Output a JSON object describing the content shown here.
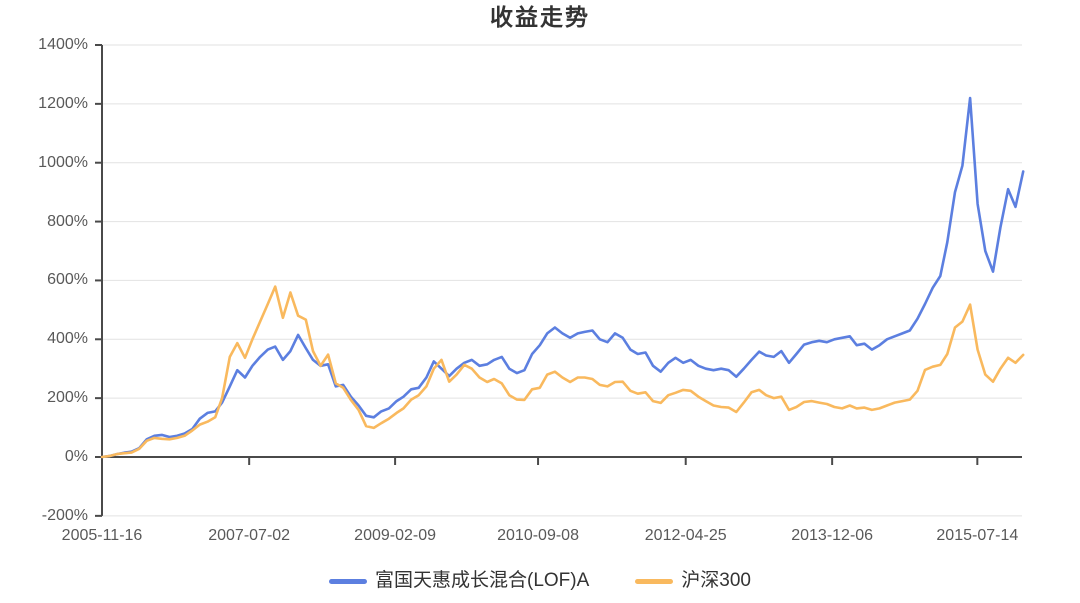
{
  "page": {
    "background": "#ffffff"
  },
  "chart_data": {
    "type": "line",
    "title": "收益走势",
    "xlabel": "",
    "ylabel": "",
    "y_tick_suffix": "%",
    "ylim": [
      -200,
      1400
    ],
    "y_ticks": [
      1400,
      1200,
      1000,
      800,
      600,
      400,
      200,
      0,
      -200
    ],
    "x_domain": [
      "2005-11-16",
      "2016-01-10"
    ],
    "x_ticks": [
      "2005-11-16",
      "2007-07-02",
      "2009-02-09",
      "2010-09-08",
      "2012-04-25",
      "2013-12-06",
      "2015-07-14"
    ],
    "grid": true,
    "legend_position": "bottom",
    "colors": {
      "axis": "#4a4a4a",
      "gridline": "#e2e2e2",
      "text": "#333333",
      "tick_text": "#595959"
    },
    "series": [
      {
        "name": "富国天惠成长混合(LOF)A",
        "color": "#5C7FE0",
        "points": [
          [
            "2005-11-16",
            0
          ],
          [
            "2005-12",
            3
          ],
          [
            "2006-01",
            10
          ],
          [
            "2006-02",
            15
          ],
          [
            "2006-03",
            18
          ],
          [
            "2006-04",
            30
          ],
          [
            "2006-05",
            60
          ],
          [
            "2006-06",
            72
          ],
          [
            "2006-07",
            75
          ],
          [
            "2006-08",
            68
          ],
          [
            "2006-09",
            72
          ],
          [
            "2006-10",
            80
          ],
          [
            "2006-11",
            95
          ],
          [
            "2006-12",
            130
          ],
          [
            "2007-01",
            150
          ],
          [
            "2007-02",
            155
          ],
          [
            "2007-03",
            185
          ],
          [
            "2007-04",
            240
          ],
          [
            "2007-05",
            295
          ],
          [
            "2007-06",
            270
          ],
          [
            "2007-07",
            310
          ],
          [
            "2007-08",
            340
          ],
          [
            "2007-09",
            365
          ],
          [
            "2007-10",
            375
          ],
          [
            "2007-11",
            330
          ],
          [
            "2007-12",
            360
          ],
          [
            "2008-01",
            415
          ],
          [
            "2008-02",
            370
          ],
          [
            "2008-03",
            330
          ],
          [
            "2008-04",
            310
          ],
          [
            "2008-05",
            315
          ],
          [
            "2008-06",
            240
          ],
          [
            "2008-07",
            245
          ],
          [
            "2008-08",
            205
          ],
          [
            "2008-09",
            175
          ],
          [
            "2008-10",
            140
          ],
          [
            "2008-11",
            135
          ],
          [
            "2008-12",
            155
          ],
          [
            "2009-01",
            165
          ],
          [
            "2009-02",
            190
          ],
          [
            "2009-03",
            205
          ],
          [
            "2009-04",
            230
          ],
          [
            "2009-05",
            235
          ],
          [
            "2009-06",
            270
          ],
          [
            "2009-07",
            325
          ],
          [
            "2009-08",
            300
          ],
          [
            "2009-09",
            275
          ],
          [
            "2009-10",
            300
          ],
          [
            "2009-11",
            320
          ],
          [
            "2009-12",
            330
          ],
          [
            "2010-01",
            310
          ],
          [
            "2010-02",
            315
          ],
          [
            "2010-03",
            330
          ],
          [
            "2010-04",
            340
          ],
          [
            "2010-05",
            300
          ],
          [
            "2010-06",
            285
          ],
          [
            "2010-07",
            295
          ],
          [
            "2010-08",
            350
          ],
          [
            "2010-09",
            380
          ],
          [
            "2010-10",
            420
          ],
          [
            "2010-11",
            440
          ],
          [
            "2010-12",
            420
          ],
          [
            "2011-01",
            405
          ],
          [
            "2011-02",
            420
          ],
          [
            "2011-03",
            425
          ],
          [
            "2011-04",
            430
          ],
          [
            "2011-05",
            400
          ],
          [
            "2011-06",
            390
          ],
          [
            "2011-07",
            420
          ],
          [
            "2011-08",
            405
          ],
          [
            "2011-09",
            365
          ],
          [
            "2011-10",
            350
          ],
          [
            "2011-11",
            355
          ],
          [
            "2011-12",
            310
          ],
          [
            "2012-01",
            290
          ],
          [
            "2012-02",
            320
          ],
          [
            "2012-03",
            337
          ],
          [
            "2012-04",
            320
          ],
          [
            "2012-05",
            330
          ],
          [
            "2012-06",
            310
          ],
          [
            "2012-07",
            300
          ],
          [
            "2012-08",
            295
          ],
          [
            "2012-09",
            300
          ],
          [
            "2012-10",
            295
          ],
          [
            "2012-11",
            273
          ],
          [
            "2012-12",
            300
          ],
          [
            "2013-01",
            330
          ],
          [
            "2013-02",
            358
          ],
          [
            "2013-03",
            345
          ],
          [
            "2013-04",
            340
          ],
          [
            "2013-05",
            360
          ],
          [
            "2013-06",
            320
          ],
          [
            "2013-07",
            350
          ],
          [
            "2013-08",
            382
          ],
          [
            "2013-09",
            390
          ],
          [
            "2013-10",
            395
          ],
          [
            "2013-11",
            390
          ],
          [
            "2013-12",
            400
          ],
          [
            "2014-01",
            405
          ],
          [
            "2014-02",
            410
          ],
          [
            "2014-03",
            380
          ],
          [
            "2014-04",
            385
          ],
          [
            "2014-05",
            365
          ],
          [
            "2014-06",
            380
          ],
          [
            "2014-07",
            400
          ],
          [
            "2014-08",
            410
          ],
          [
            "2014-09",
            420
          ],
          [
            "2014-10",
            430
          ],
          [
            "2014-11",
            470
          ],
          [
            "2014-12",
            520
          ],
          [
            "2015-01",
            575
          ],
          [
            "2015-02",
            615
          ],
          [
            "2015-03",
            730
          ],
          [
            "2015-04",
            900
          ],
          [
            "2015-05",
            990
          ],
          [
            "2015-06",
            1220
          ],
          [
            "2015-07",
            860
          ],
          [
            "2015-08",
            700
          ],
          [
            "2015-09",
            630
          ],
          [
            "2015-10",
            780
          ],
          [
            "2015-11",
            910
          ],
          [
            "2015-12",
            850
          ],
          [
            "2016-01",
            970
          ]
        ]
      },
      {
        "name": "沪深300",
        "color": "#F9B95E",
        "points": [
          [
            "2005-11-16",
            0
          ],
          [
            "2005-12",
            3
          ],
          [
            "2006-01",
            10
          ],
          [
            "2006-02",
            13
          ],
          [
            "2006-03",
            15
          ],
          [
            "2006-04",
            28
          ],
          [
            "2006-05",
            55
          ],
          [
            "2006-06",
            65
          ],
          [
            "2006-07",
            62
          ],
          [
            "2006-08",
            60
          ],
          [
            "2006-09",
            65
          ],
          [
            "2006-10",
            72
          ],
          [
            "2006-11",
            90
          ],
          [
            "2006-12",
            110
          ],
          [
            "2007-01",
            120
          ],
          [
            "2007-02",
            135
          ],
          [
            "2007-03",
            200
          ],
          [
            "2007-04",
            340
          ],
          [
            "2007-05",
            387
          ],
          [
            "2007-06",
            337
          ],
          [
            "2007-07",
            400
          ],
          [
            "2007-08",
            460
          ],
          [
            "2007-09",
            520
          ],
          [
            "2007-10",
            579
          ],
          [
            "2007-11",
            473
          ],
          [
            "2007-12",
            559
          ],
          [
            "2008-01",
            480
          ],
          [
            "2008-02",
            467
          ],
          [
            "2008-03",
            360
          ],
          [
            "2008-04",
            310
          ],
          [
            "2008-05",
            348
          ],
          [
            "2008-06",
            250
          ],
          [
            "2008-07",
            235
          ],
          [
            "2008-08",
            194
          ],
          [
            "2008-09",
            160
          ],
          [
            "2008-10",
            105
          ],
          [
            "2008-11",
            99
          ],
          [
            "2008-12",
            115
          ],
          [
            "2009-01",
            130
          ],
          [
            "2009-02",
            150
          ],
          [
            "2009-03",
            165
          ],
          [
            "2009-04",
            195
          ],
          [
            "2009-05",
            210
          ],
          [
            "2009-06",
            240
          ],
          [
            "2009-07",
            300
          ],
          [
            "2009-08",
            330
          ],
          [
            "2009-09",
            256
          ],
          [
            "2009-10",
            280
          ],
          [
            "2009-11",
            313
          ],
          [
            "2009-12",
            300
          ],
          [
            "2010-01",
            270
          ],
          [
            "2010-02",
            255
          ],
          [
            "2010-03",
            265
          ],
          [
            "2010-04",
            250
          ],
          [
            "2010-05",
            210
          ],
          [
            "2010-06",
            195
          ],
          [
            "2010-07",
            194
          ],
          [
            "2010-08",
            230
          ],
          [
            "2010-09",
            235
          ],
          [
            "2010-10",
            280
          ],
          [
            "2010-11",
            290
          ],
          [
            "2010-12",
            270
          ],
          [
            "2011-01",
            255
          ],
          [
            "2011-02",
            270
          ],
          [
            "2011-03",
            270
          ],
          [
            "2011-04",
            265
          ],
          [
            "2011-05",
            245
          ],
          [
            "2011-06",
            240
          ],
          [
            "2011-07",
            255
          ],
          [
            "2011-08",
            256
          ],
          [
            "2011-09",
            225
          ],
          [
            "2011-10",
            215
          ],
          [
            "2011-11",
            220
          ],
          [
            "2011-12",
            190
          ],
          [
            "2012-01",
            184
          ],
          [
            "2012-02",
            210
          ],
          [
            "2012-03",
            218
          ],
          [
            "2012-04",
            228
          ],
          [
            "2012-05",
            225
          ],
          [
            "2012-06",
            205
          ],
          [
            "2012-07",
            190
          ],
          [
            "2012-08",
            175
          ],
          [
            "2012-09",
            170
          ],
          [
            "2012-10",
            168
          ],
          [
            "2012-11",
            153
          ],
          [
            "2012-12",
            185
          ],
          [
            "2013-01",
            220
          ],
          [
            "2013-02",
            228
          ],
          [
            "2013-03",
            210
          ],
          [
            "2013-04",
            200
          ],
          [
            "2013-05",
            205
          ],
          [
            "2013-06",
            160
          ],
          [
            "2013-07",
            170
          ],
          [
            "2013-08",
            187
          ],
          [
            "2013-09",
            190
          ],
          [
            "2013-10",
            185
          ],
          [
            "2013-11",
            180
          ],
          [
            "2013-12",
            170
          ],
          [
            "2014-01",
            165
          ],
          [
            "2014-02",
            175
          ],
          [
            "2014-03",
            165
          ],
          [
            "2014-04",
            168
          ],
          [
            "2014-05",
            160
          ],
          [
            "2014-06",
            165
          ],
          [
            "2014-07",
            175
          ],
          [
            "2014-08",
            185
          ],
          [
            "2014-09",
            190
          ],
          [
            "2014-10",
            195
          ],
          [
            "2014-11",
            225
          ],
          [
            "2014-12",
            296
          ],
          [
            "2015-01",
            307
          ],
          [
            "2015-02",
            313
          ],
          [
            "2015-03",
            350
          ],
          [
            "2015-04",
            440
          ],
          [
            "2015-05",
            460
          ],
          [
            "2015-06",
            518
          ],
          [
            "2015-07",
            365
          ],
          [
            "2015-08",
            280
          ],
          [
            "2015-09",
            256
          ],
          [
            "2015-10",
            300
          ],
          [
            "2015-11",
            337
          ],
          [
            "2015-12",
            320
          ],
          [
            "2016-01",
            347
          ]
        ]
      }
    ]
  }
}
